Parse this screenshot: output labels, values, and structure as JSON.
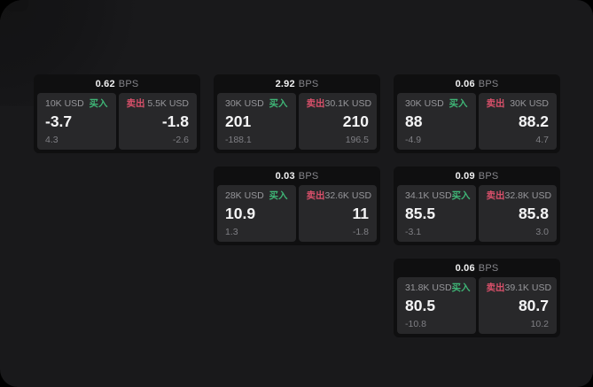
{
  "labels": {
    "buy": "买入",
    "sell": "卖出",
    "bps_unit": "BPS"
  },
  "colors": {
    "buy_green": "#3fb576",
    "sell_red": "#d8506a",
    "canvas_bg": "#19191b",
    "card_bg": "#0f0f10",
    "panel_bg": "#28282a"
  },
  "cards": [
    {
      "col": 0,
      "row": 0,
      "bps": "0.62",
      "buy": {
        "size": "10K USD",
        "value": "-3.7",
        "sub": "4.3"
      },
      "sell": {
        "size": "5.5K USD",
        "value": "-1.8",
        "sub": "-2.6"
      }
    },
    {
      "col": 1,
      "row": 0,
      "bps": "2.92",
      "buy": {
        "size": "30K USD",
        "value": "201",
        "sub": "-188.1"
      },
      "sell": {
        "size": "30.1K USD",
        "value": "210",
        "sub": "196.5"
      }
    },
    {
      "col": 2,
      "row": 0,
      "bps": "0.06",
      "buy": {
        "size": "30K USD",
        "value": "88",
        "sub": "-4.9"
      },
      "sell": {
        "size": "30K USD",
        "value": "88.2",
        "sub": "4.7"
      }
    },
    {
      "col": 1,
      "row": 1,
      "bps": "0.03",
      "buy": {
        "size": "28K USD",
        "value": "10.9",
        "sub": "1.3"
      },
      "sell": {
        "size": "32.6K USD",
        "value": "11",
        "sub": "-1.8"
      }
    },
    {
      "col": 2,
      "row": 1,
      "bps": "0.09",
      "buy": {
        "size": "34.1K USD",
        "value": "85.5",
        "sub": "-3.1"
      },
      "sell": {
        "size": "32.8K USD",
        "value": "85.8",
        "sub": "3.0"
      }
    },
    {
      "col": 2,
      "row": 2,
      "bps": "0.06",
      "buy": {
        "size": "31.8K USD",
        "value": "80.5",
        "sub": "-10.8"
      },
      "sell": {
        "size": "39.1K USD",
        "value": "80.7",
        "sub": "10.2"
      }
    }
  ]
}
